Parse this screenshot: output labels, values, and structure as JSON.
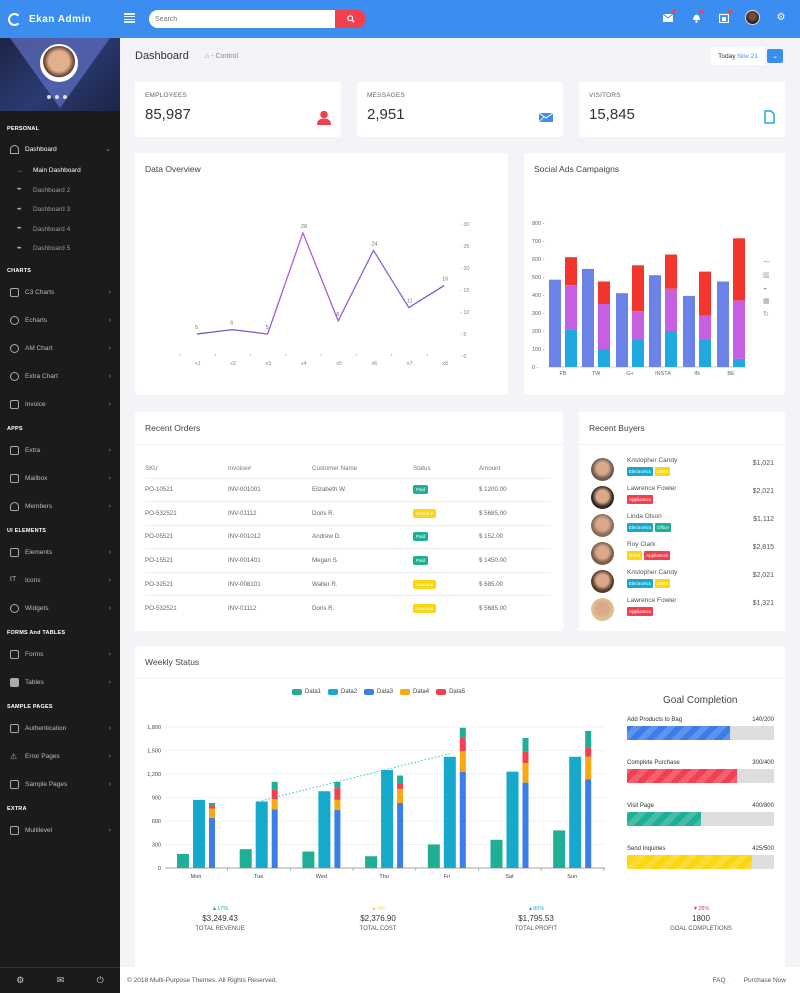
{
  "topbar": {
    "brand": "Ekan Admin",
    "search_placeholder": "Search",
    "icons": [
      "mail-icon",
      "bell-icon",
      "calendar-icon",
      "user-avatar",
      "gear-icon"
    ]
  },
  "sidebar": {
    "sections": [
      {
        "header": "PERSONAL"
      },
      {
        "header": "CHARTS"
      },
      {
        "header": "APPS"
      },
      {
        "header": "UI ELEMENTS"
      },
      {
        "header": "FORMS And TABLES"
      },
      {
        "header": "SAMPLE PAGES"
      },
      {
        "header": "EXTRA"
      }
    ],
    "dashboard": "Dashboard",
    "sub": [
      "Main Dashboard",
      "Dashboard 2",
      "Dashboard 3",
      "Dashboard 4",
      "Dashboard 5"
    ],
    "items": {
      "c3": "C3 Charts",
      "echarts": "Echarts",
      "am": "AM Chart",
      "extra_chart": "Extra Chart",
      "invoice": "Invoice",
      "extra": "Extra",
      "mailbox": "Mailbox",
      "members": "Members",
      "elements": "Elements",
      "icons": "Icons",
      "widgets": "Widgets",
      "forms": "Forms",
      "tables": "Tables",
      "auth": "Authentication",
      "error": "Error Pages",
      "sample": "Sample Pages",
      "multilevel": "Multilevel"
    }
  },
  "header": {
    "title": "Dashboard",
    "breadcrumb": "- Control",
    "date_label": "Today",
    "date_value": "Nov 21"
  },
  "stats": [
    {
      "label": "EMPLOYEES",
      "value": "85,987",
      "icon": "user-icon",
      "color": "#f2404f"
    },
    {
      "label": "MESSAGES",
      "value": "2,951",
      "icon": "envelope-icon",
      "color": "#3b8ef0"
    },
    {
      "label": "VISITORS",
      "value": "15,845",
      "icon": "document-icon",
      "color": "#1fa9d6"
    }
  ],
  "data_overview": {
    "title": "Data Overview"
  },
  "social": {
    "title": "Social Ads Campaigns"
  },
  "orders": {
    "title": "Recent Orders",
    "columns": [
      "SKU",
      "Invoice#",
      "Customer Name",
      "Status",
      "Amount"
    ],
    "rows": [
      {
        "sku": "PO-10521",
        "inv": "INV-001001",
        "name": "Elizabeth W.",
        "status": "Paid",
        "amount": "$ 1200.00"
      },
      {
        "sku": "PO-532521",
        "inv": "INV-01112",
        "name": "Doris R.",
        "status": "Overdue",
        "amount": "$ 5685.00"
      },
      {
        "sku": "PO-05521",
        "inv": "INV-001012",
        "name": "Andrew D.",
        "status": "Paid",
        "amount": "$ 152.00"
      },
      {
        "sku": "PO-15521",
        "inv": "INV-001401",
        "name": "Megan S.",
        "status": "Paid",
        "amount": "$ 1450.00"
      },
      {
        "sku": "PO-32521",
        "inv": "INV-008101",
        "name": "Walter R.",
        "status": "Overdue",
        "amount": "$ 685.00"
      },
      {
        "sku": "PO-532521",
        "inv": "INV-01112",
        "name": "Doris R.",
        "status": "Overdue",
        "amount": "$ 5685.00"
      }
    ]
  },
  "buyers": {
    "title": "Recent Buyers",
    "list": [
      {
        "name": "Kristopher Candy",
        "tags": [
          "Electronics",
          "Other"
        ],
        "amount": "$1,021"
      },
      {
        "name": "Lawrence Fowler",
        "tags": [
          "Appliances"
        ],
        "amount": "$2,021"
      },
      {
        "name": "Linda Olson",
        "tags": [
          "Electronics",
          "Office"
        ],
        "amount": "$1,112"
      },
      {
        "name": "Roy Clark",
        "tags": [
          "Other",
          "Appliances"
        ],
        "amount": "$2,815"
      },
      {
        "name": "Kristopher Candy",
        "tags": [
          "Electronics",
          "Other"
        ],
        "amount": "$2,021"
      },
      {
        "name": "Lawrence Fowler",
        "tags": [
          "Appliances"
        ],
        "amount": "$1,321"
      }
    ]
  },
  "weekly": {
    "title": "Weekly Status",
    "legend": [
      "Data1",
      "Data2",
      "Data3",
      "Data4",
      "Data5"
    ],
    "goal_title": "Goal Completion",
    "goals": [
      {
        "label": "Add Products to Bag",
        "value": "140/200",
        "pct": 70,
        "color": "#3b7de9"
      },
      {
        "label": "Complete Purchase",
        "value": "300/400",
        "pct": 75,
        "color": "#f2404f"
      },
      {
        "label": "Visit Page",
        "value": "400/800",
        "pct": 50,
        "color": "#1fae96"
      },
      {
        "label": "Send Inquiries",
        "value": "425/500",
        "pct": 85,
        "color": "#fcd60f"
      }
    ],
    "kpis": [
      {
        "pct": "▲17%",
        "value": "$3,249.43",
        "label": "TOTAL REVENUE",
        "color": "#1fae96"
      },
      {
        "pct": "▲0%",
        "value": "$2,376.90",
        "label": "TOTAL COST",
        "color": "#fcd60f"
      },
      {
        "pct": "▲80%",
        "value": "$1,795.53",
        "label": "TOTAL PROFIT",
        "color": "#1fa9d6"
      },
      {
        "pct": "▼28%",
        "value": "1800",
        "label": "GOAL COMPLETIONS",
        "color": "#f2404f"
      }
    ]
  },
  "footer": {
    "copyright": "© 2018 Multi-Purpose Themes. All Rights Reserved.",
    "links": [
      "FAQ",
      "Purchase Now"
    ]
  },
  "chart_data": [
    {
      "type": "line",
      "title": "Data Overview",
      "categories": [
        "x1",
        "x2",
        "x3",
        "x4",
        "x5",
        "x6",
        "x7",
        "x8"
      ],
      "values": [
        5,
        6,
        5,
        28,
        8,
        24,
        11,
        16
      ],
      "ylim": [
        0,
        30
      ],
      "yticks": [
        0,
        5,
        10,
        15,
        20,
        25,
        30
      ],
      "ylabel_position": "right"
    },
    {
      "type": "bar",
      "title": "Social Ads Campaigns",
      "categories": [
        "FB",
        "TW",
        "G+",
        "INSTA",
        "IN",
        "BE"
      ],
      "ylim": [
        0,
        800
      ],
      "yticks": [
        0,
        100,
        200,
        300,
        400,
        500,
        600,
        700,
        800
      ],
      "series": [
        {
          "name": "Series A (single bar)",
          "values": [
            485,
            545,
            410,
            510,
            395,
            475
          ],
          "color": "#6b82e6"
        },
        {
          "name": "Series B (stack base)",
          "values": [
            210,
            100,
            155,
            200,
            155,
            45
          ],
          "color": "#1fa9e0"
        },
        {
          "name": "Series C (stack mid)",
          "values": [
            245,
            250,
            155,
            235,
            130,
            325
          ],
          "color": "#c660e0"
        },
        {
          "name": "Series D (stack top)",
          "values": [
            155,
            125,
            255,
            190,
            245,
            345
          ],
          "color": "#f2362e"
        }
      ]
    },
    {
      "type": "bar",
      "title": "Weekly Status",
      "categories": [
        "Mon",
        "Tue",
        "Wed",
        "Thu",
        "Fri",
        "Sat",
        "Sun"
      ],
      "ylim": [
        0,
        1800
      ],
      "yticks": [
        0,
        300,
        600,
        900,
        1200,
        1500,
        1800
      ],
      "series": [
        {
          "name": "Data1",
          "values": [
            180,
            240,
            210,
            150,
            300,
            360,
            480
          ],
          "color": "#1fae96"
        },
        {
          "name": "Data2",
          "values": [
            870,
            850,
            980,
            1250,
            1420,
            1230,
            1420
          ],
          "color": "#17a9cc"
        },
        {
          "name": "Data3",
          "values": [
            640,
            750,
            740,
            830,
            1230,
            1090,
            1130
          ],
          "color": "#3b7de9"
        },
        {
          "name": "Data4",
          "values": [
            120,
            130,
            130,
            180,
            260,
            250,
            290
          ],
          "color": "#f7a90f"
        },
        {
          "name": "Data5",
          "values": [
            40,
            120,
            150,
            70,
            170,
            150,
            120
          ],
          "color": "#f2404f"
        },
        {
          "name": "Data1 (stack top)",
          "values": [
            30,
            100,
            80,
            100,
            130,
            170,
            210
          ],
          "color": "#1fae96"
        }
      ],
      "trendline": {
        "from": "Tue",
        "to": "Fri",
        "style": "dotted"
      }
    }
  ]
}
